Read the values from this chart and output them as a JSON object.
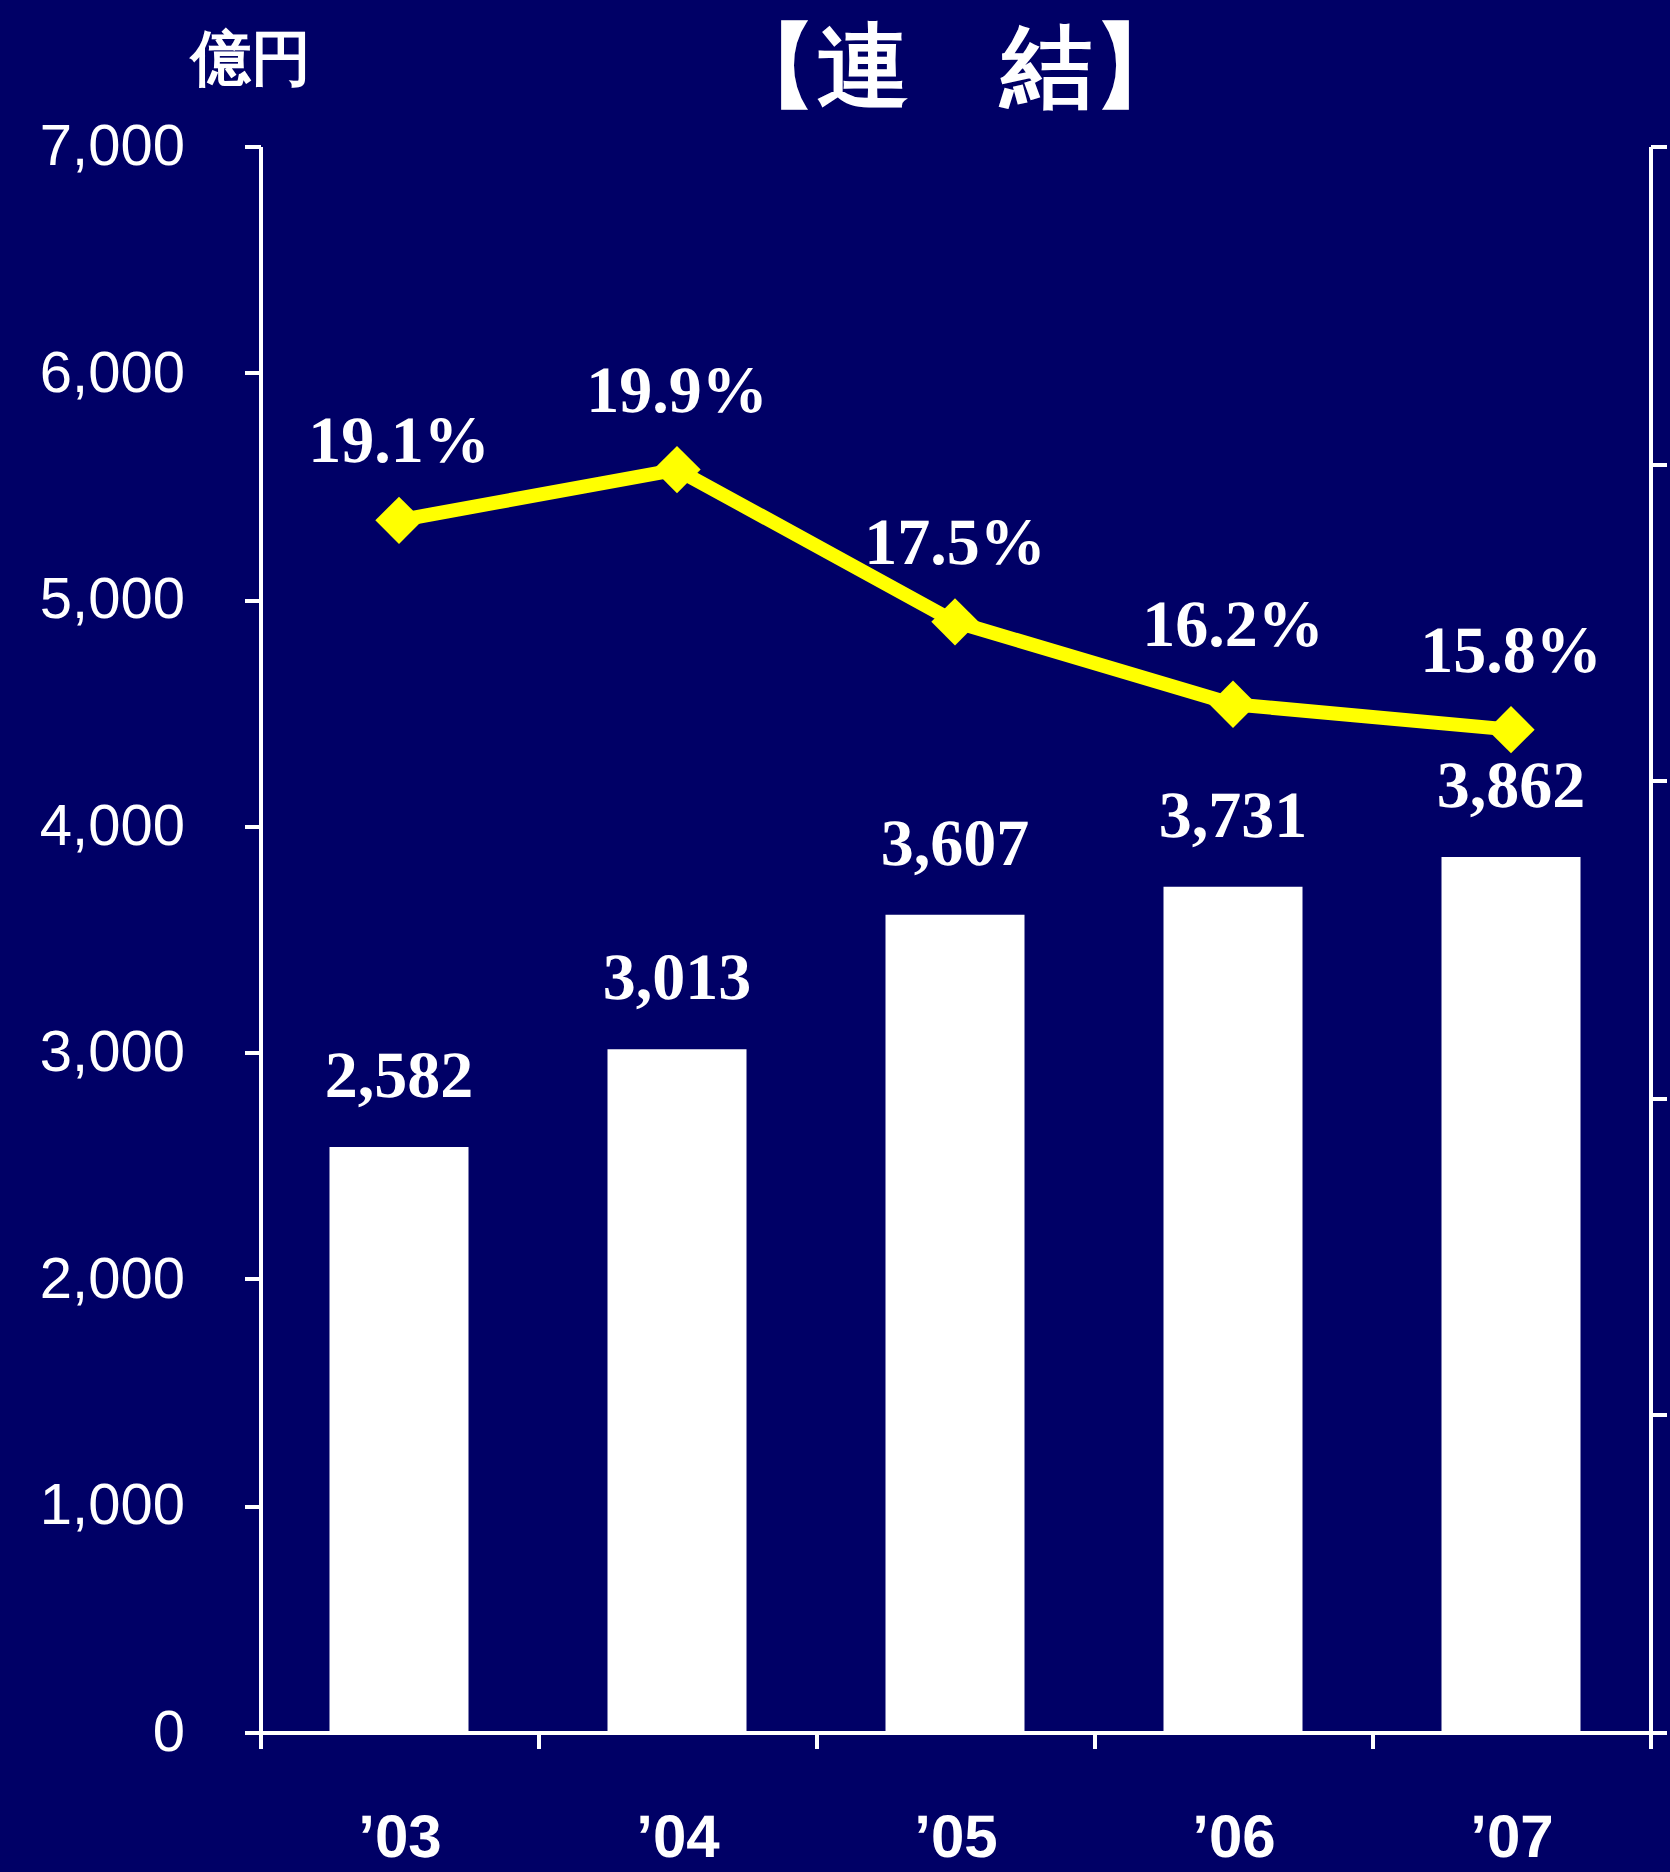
{
  "chart_data": {
    "type": "bar",
    "title": "【連　結】",
    "ylabel": "億円",
    "categories": [
      "’03",
      "’04",
      "’05",
      "’06",
      "’07"
    ],
    "series": [
      {
        "color": "#ffffff",
        "values": [
          2582,
          3013,
          3607,
          3731,
          3862
        ],
        "value_labels": [
          "2,582",
          "3,013",
          "3,607",
          "3,731",
          "3,862"
        ]
      },
      {
        "type": "line",
        "axis": "y2",
        "color": "#ffff00",
        "marker": "diamond",
        "line_style": "solid",
        "values": [
          19.1,
          19.9,
          17.5,
          16.2,
          15.8
        ],
        "value_labels": [
          "19.1%",
          "19.9%",
          "17.5%",
          "16.2%",
          "15.8%"
        ]
      }
    ],
    "ylim": [
      0,
      7000
    ],
    "yticks": [
      0,
      {
        "value": 1000,
        "label": "1,000"
      },
      {
        "value": 2000,
        "label": "2,000"
      },
      {
        "value": 3000,
        "label": "3,000"
      },
      {
        "value": 4000,
        "label": "4,000"
      },
      {
        "value": 5000,
        "label": "5,000"
      },
      {
        "value": 6000,
        "label": "6,000"
      },
      {
        "value": 7000,
        "label": "7,000"
      }
    ],
    "y2lim": [
      0,
      25
    ],
    "y2ticks": [
      {
        "value": 0,
        "label": null
      },
      {
        "value": 5,
        "label": null
      },
      {
        "value": 10,
        "label": null
      },
      {
        "value": 15,
        "label": null
      },
      {
        "value": 20,
        "label": null
      },
      {
        "value": 25,
        "label": null
      }
    ],
    "tick_labels": "xy"
  }
}
